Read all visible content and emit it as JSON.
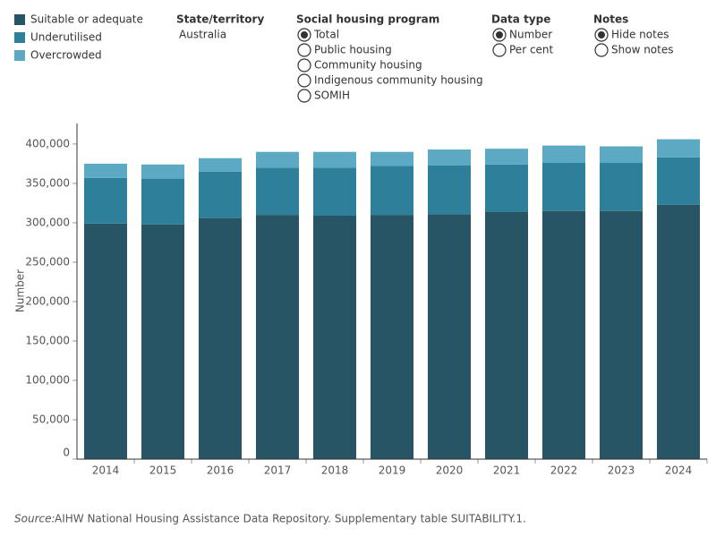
{
  "chart_data": {
    "type": "stacked_bar",
    "y_label": "Number",
    "categories": [
      "2014",
      "2015",
      "2016",
      "2017",
      "2018",
      "2019",
      "2020",
      "2021",
      "2022",
      "2023",
      "2024"
    ],
    "series": [
      {
        "name": "Suitable or adequate",
        "color": "#285566",
        "values": [
          299000,
          298000,
          306000,
          310000,
          309000,
          310000,
          311000,
          314000,
          315000,
          315000,
          323000
        ]
      },
      {
        "name": "Underutilised",
        "color": "#2e7f99",
        "values": [
          58000,
          58000,
          59000,
          60000,
          61000,
          62000,
          62000,
          60000,
          61000,
          61000,
          60000
        ]
      },
      {
        "name": "Overcrowded",
        "color": "#5ba9c2",
        "values": [
          18000,
          18000,
          17000,
          20000,
          20000,
          18000,
          20000,
          20000,
          22000,
          21000,
          23000
        ]
      }
    ],
    "ylim": [
      0,
      426000
    ],
    "yticks": [
      0,
      {
        "value": 50000,
        "label": "50,000"
      },
      {
        "value": 100000,
        "label": "100,000"
      },
      {
        "value": 150000,
        "label": "150,000"
      },
      {
        "value": 200000,
        "label": "200,000"
      },
      {
        "value": 250000,
        "label": "250,000"
      },
      {
        "value": 300000,
        "label": "300,000"
      },
      {
        "value": 350000,
        "label": "350,000"
      },
      {
        "value": 400000,
        "label": "400,000"
      }
    ],
    "source": {
      "label": "Source:",
      "text": "AIHW National Housing Assistance Data Repository. Supplementary table SUITABILITY.1."
    }
  },
  "filters": {
    "title": "State/territory",
    "value": "Australia"
  },
  "controls": [
    {
      "title": "Social housing program",
      "options": [
        "Total",
        "Public housing",
        "Community housing",
        "Indigenous community housing",
        "SOMIH"
      ],
      "selected": 0
    },
    {
      "title": "Data type",
      "options": [
        "Number",
        "Per cent"
      ],
      "selected": 0
    },
    {
      "title": "Notes",
      "options": [
        "Hide notes",
        "Show notes"
      ],
      "selected": 0
    }
  ]
}
